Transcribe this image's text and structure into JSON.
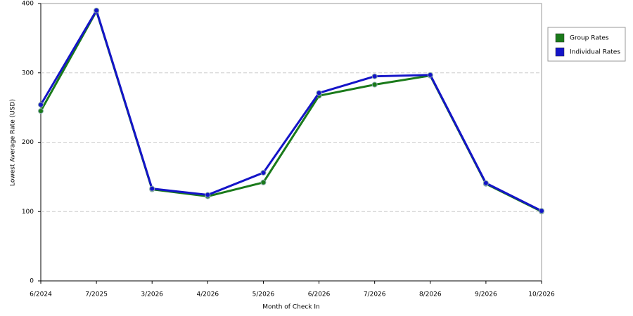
{
  "chart_data": {
    "type": "line",
    "x_label": "Month of Check In",
    "y_label": "Lowest Average Rate (USD)",
    "categories": [
      "6/2024",
      "7/2025",
      "3/2026",
      "4/2026",
      "5/2026",
      "6/2026",
      "7/2026",
      "8/2026",
      "9/2026",
      "10/2026"
    ],
    "series": [
      {
        "name": "Group Rates",
        "color": "#1a7a1a",
        "values": [
          245,
          389,
          132,
          122,
          142,
          267,
          283,
          296,
          140,
          100
        ]
      },
      {
        "name": "Individual Rates",
        "color": "#1414c8",
        "values": [
          254,
          390,
          133,
          124,
          156,
          271,
          295,
          297,
          141,
          101
        ]
      }
    ],
    "ylim": [
      0,
      400
    ],
    "yticks": [
      0,
      100,
      200,
      300,
      400
    ],
    "grid": true,
    "legend": "right"
  }
}
